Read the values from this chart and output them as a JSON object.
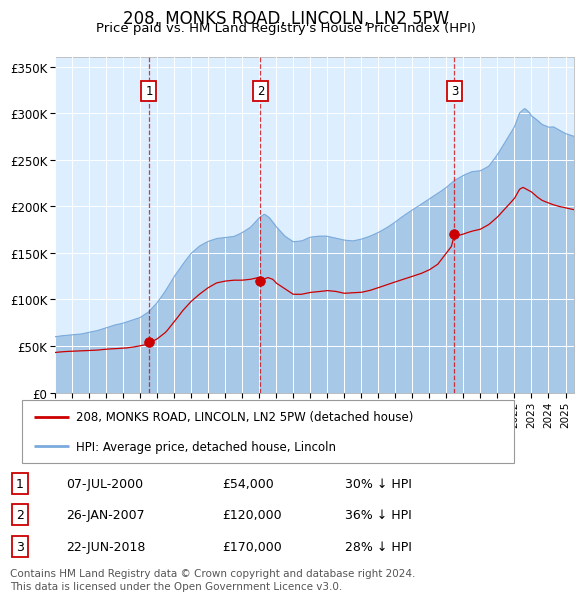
{
  "title": "208, MONKS ROAD, LINCOLN, LN2 5PW",
  "subtitle": "Price paid vs. HM Land Registry's House Price Index (HPI)",
  "title_fontsize": 12,
  "subtitle_fontsize": 9.5,
  "hpi_color": "#a8c8e8",
  "hpi_line_color": "#7aabdc",
  "price_color": "#cc0000",
  "background_color": "#ddeeff",
  "bg_fill": "#ddeeff",
  "plot_bg": "#ffffff",
  "ylim": [
    0,
    360000
  ],
  "yticks": [
    0,
    50000,
    100000,
    150000,
    200000,
    250000,
    300000,
    350000
  ],
  "ytick_labels": [
    "£0",
    "£50K",
    "£100K",
    "£150K",
    "£200K",
    "£250K",
    "£300K",
    "£350K"
  ],
  "purchases": [
    {
      "label": "1",
      "date": "07-JUL-2000",
      "year": 2000.52,
      "price": 54000,
      "hpi_pct": "30% ↓ HPI"
    },
    {
      "label": "2",
      "date": "26-JAN-2007",
      "year": 2007.07,
      "price": 120000,
      "hpi_pct": "36% ↓ HPI"
    },
    {
      "label": "3",
      "date": "22-JUN-2018",
      "year": 2018.47,
      "price": 170000,
      "hpi_pct": "28% ↓ HPI"
    }
  ],
  "legend_line1": "208, MONKS ROAD, LINCOLN, LN2 5PW (detached house)",
  "legend_line2": "HPI: Average price, detached house, Lincoln",
  "footer": "Contains HM Land Registry data © Crown copyright and database right 2024.\nThis data is licensed under the Open Government Licence v3.0.",
  "xmin": 1995.0,
  "xmax": 2025.5,
  "hpi_key_points": [
    [
      1995.0,
      60000
    ],
    [
      1995.5,
      61000
    ],
    [
      1996.0,
      62000
    ],
    [
      1996.5,
      63000
    ],
    [
      1997.0,
      65000
    ],
    [
      1997.5,
      67000
    ],
    [
      1998.0,
      70000
    ],
    [
      1998.5,
      73000
    ],
    [
      1999.0,
      75000
    ],
    [
      1999.5,
      78000
    ],
    [
      2000.0,
      81000
    ],
    [
      2000.5,
      87000
    ],
    [
      2001.0,
      97000
    ],
    [
      2001.5,
      110000
    ],
    [
      2002.0,
      125000
    ],
    [
      2002.5,
      138000
    ],
    [
      2003.0,
      150000
    ],
    [
      2003.5,
      158000
    ],
    [
      2004.0,
      163000
    ],
    [
      2004.5,
      166000
    ],
    [
      2005.0,
      167000
    ],
    [
      2005.5,
      168000
    ],
    [
      2006.0,
      172000
    ],
    [
      2006.5,
      178000
    ],
    [
      2007.0,
      188000
    ],
    [
      2007.3,
      192000
    ],
    [
      2007.6,
      188000
    ],
    [
      2008.0,
      178000
    ],
    [
      2008.5,
      168000
    ],
    [
      2009.0,
      162000
    ],
    [
      2009.5,
      163000
    ],
    [
      2010.0,
      167000
    ],
    [
      2010.5,
      168000
    ],
    [
      2011.0,
      168000
    ],
    [
      2011.5,
      166000
    ],
    [
      2012.0,
      164000
    ],
    [
      2012.5,
      163000
    ],
    [
      2013.0,
      165000
    ],
    [
      2013.5,
      168000
    ],
    [
      2014.0,
      172000
    ],
    [
      2014.5,
      177000
    ],
    [
      2015.0,
      183000
    ],
    [
      2015.5,
      190000
    ],
    [
      2016.0,
      196000
    ],
    [
      2016.5,
      202000
    ],
    [
      2017.0,
      208000
    ],
    [
      2017.5,
      214000
    ],
    [
      2018.0,
      220000
    ],
    [
      2018.5,
      228000
    ],
    [
      2019.0,
      233000
    ],
    [
      2019.5,
      237000
    ],
    [
      2020.0,
      238000
    ],
    [
      2020.5,
      243000
    ],
    [
      2021.0,
      255000
    ],
    [
      2021.5,
      270000
    ],
    [
      2022.0,
      285000
    ],
    [
      2022.3,
      300000
    ],
    [
      2022.6,
      305000
    ],
    [
      2022.9,
      300000
    ],
    [
      2023.0,
      297000
    ],
    [
      2023.3,
      293000
    ],
    [
      2023.6,
      288000
    ],
    [
      2024.0,
      285000
    ],
    [
      2024.3,
      285000
    ],
    [
      2024.6,
      282000
    ],
    [
      2025.0,
      278000
    ],
    [
      2025.5,
      275000
    ]
  ],
  "price_key_points": [
    [
      1995.0,
      43000
    ],
    [
      1995.5,
      44000
    ],
    [
      1996.0,
      44500
    ],
    [
      1996.5,
      45000
    ],
    [
      1997.0,
      45500
    ],
    [
      1997.5,
      46000
    ],
    [
      1998.0,
      47000
    ],
    [
      1998.5,
      47500
    ],
    [
      1999.0,
      48000
    ],
    [
      1999.5,
      49000
    ],
    [
      2000.0,
      50500
    ],
    [
      2000.4,
      52000
    ],
    [
      2000.52,
      54000
    ],
    [
      2000.7,
      55000
    ],
    [
      2001.0,
      58000
    ],
    [
      2001.5,
      65000
    ],
    [
      2002.0,
      76000
    ],
    [
      2002.5,
      88000
    ],
    [
      2003.0,
      98000
    ],
    [
      2003.5,
      106000
    ],
    [
      2004.0,
      113000
    ],
    [
      2004.5,
      118000
    ],
    [
      2005.0,
      120000
    ],
    [
      2005.5,
      121000
    ],
    [
      2006.0,
      121000
    ],
    [
      2006.5,
      122000
    ],
    [
      2007.0,
      124000
    ],
    [
      2007.07,
      120000
    ],
    [
      2007.5,
      124000
    ],
    [
      2007.8,
      122000
    ],
    [
      2008.0,
      118000
    ],
    [
      2008.5,
      112000
    ],
    [
      2009.0,
      106000
    ],
    [
      2009.5,
      106000
    ],
    [
      2010.0,
      108000
    ],
    [
      2010.5,
      109000
    ],
    [
      2011.0,
      110000
    ],
    [
      2011.5,
      109000
    ],
    [
      2012.0,
      107000
    ],
    [
      2012.5,
      107500
    ],
    [
      2013.0,
      108000
    ],
    [
      2013.5,
      110000
    ],
    [
      2014.0,
      113000
    ],
    [
      2014.5,
      116000
    ],
    [
      2015.0,
      119000
    ],
    [
      2015.5,
      122000
    ],
    [
      2016.0,
      125000
    ],
    [
      2016.5,
      128000
    ],
    [
      2017.0,
      132000
    ],
    [
      2017.5,
      138000
    ],
    [
      2018.0,
      150000
    ],
    [
      2018.3,
      157000
    ],
    [
      2018.47,
      170000
    ],
    [
      2018.6,
      168000
    ],
    [
      2019.0,
      170000
    ],
    [
      2019.5,
      173000
    ],
    [
      2020.0,
      175000
    ],
    [
      2020.5,
      180000
    ],
    [
      2021.0,
      188000
    ],
    [
      2021.5,
      198000
    ],
    [
      2022.0,
      208000
    ],
    [
      2022.3,
      218000
    ],
    [
      2022.5,
      220000
    ],
    [
      2022.7,
      218000
    ],
    [
      2023.0,
      215000
    ],
    [
      2023.3,
      210000
    ],
    [
      2023.6,
      206000
    ],
    [
      2024.0,
      203000
    ],
    [
      2024.5,
      200000
    ],
    [
      2025.0,
      198000
    ],
    [
      2025.5,
      196000
    ]
  ]
}
